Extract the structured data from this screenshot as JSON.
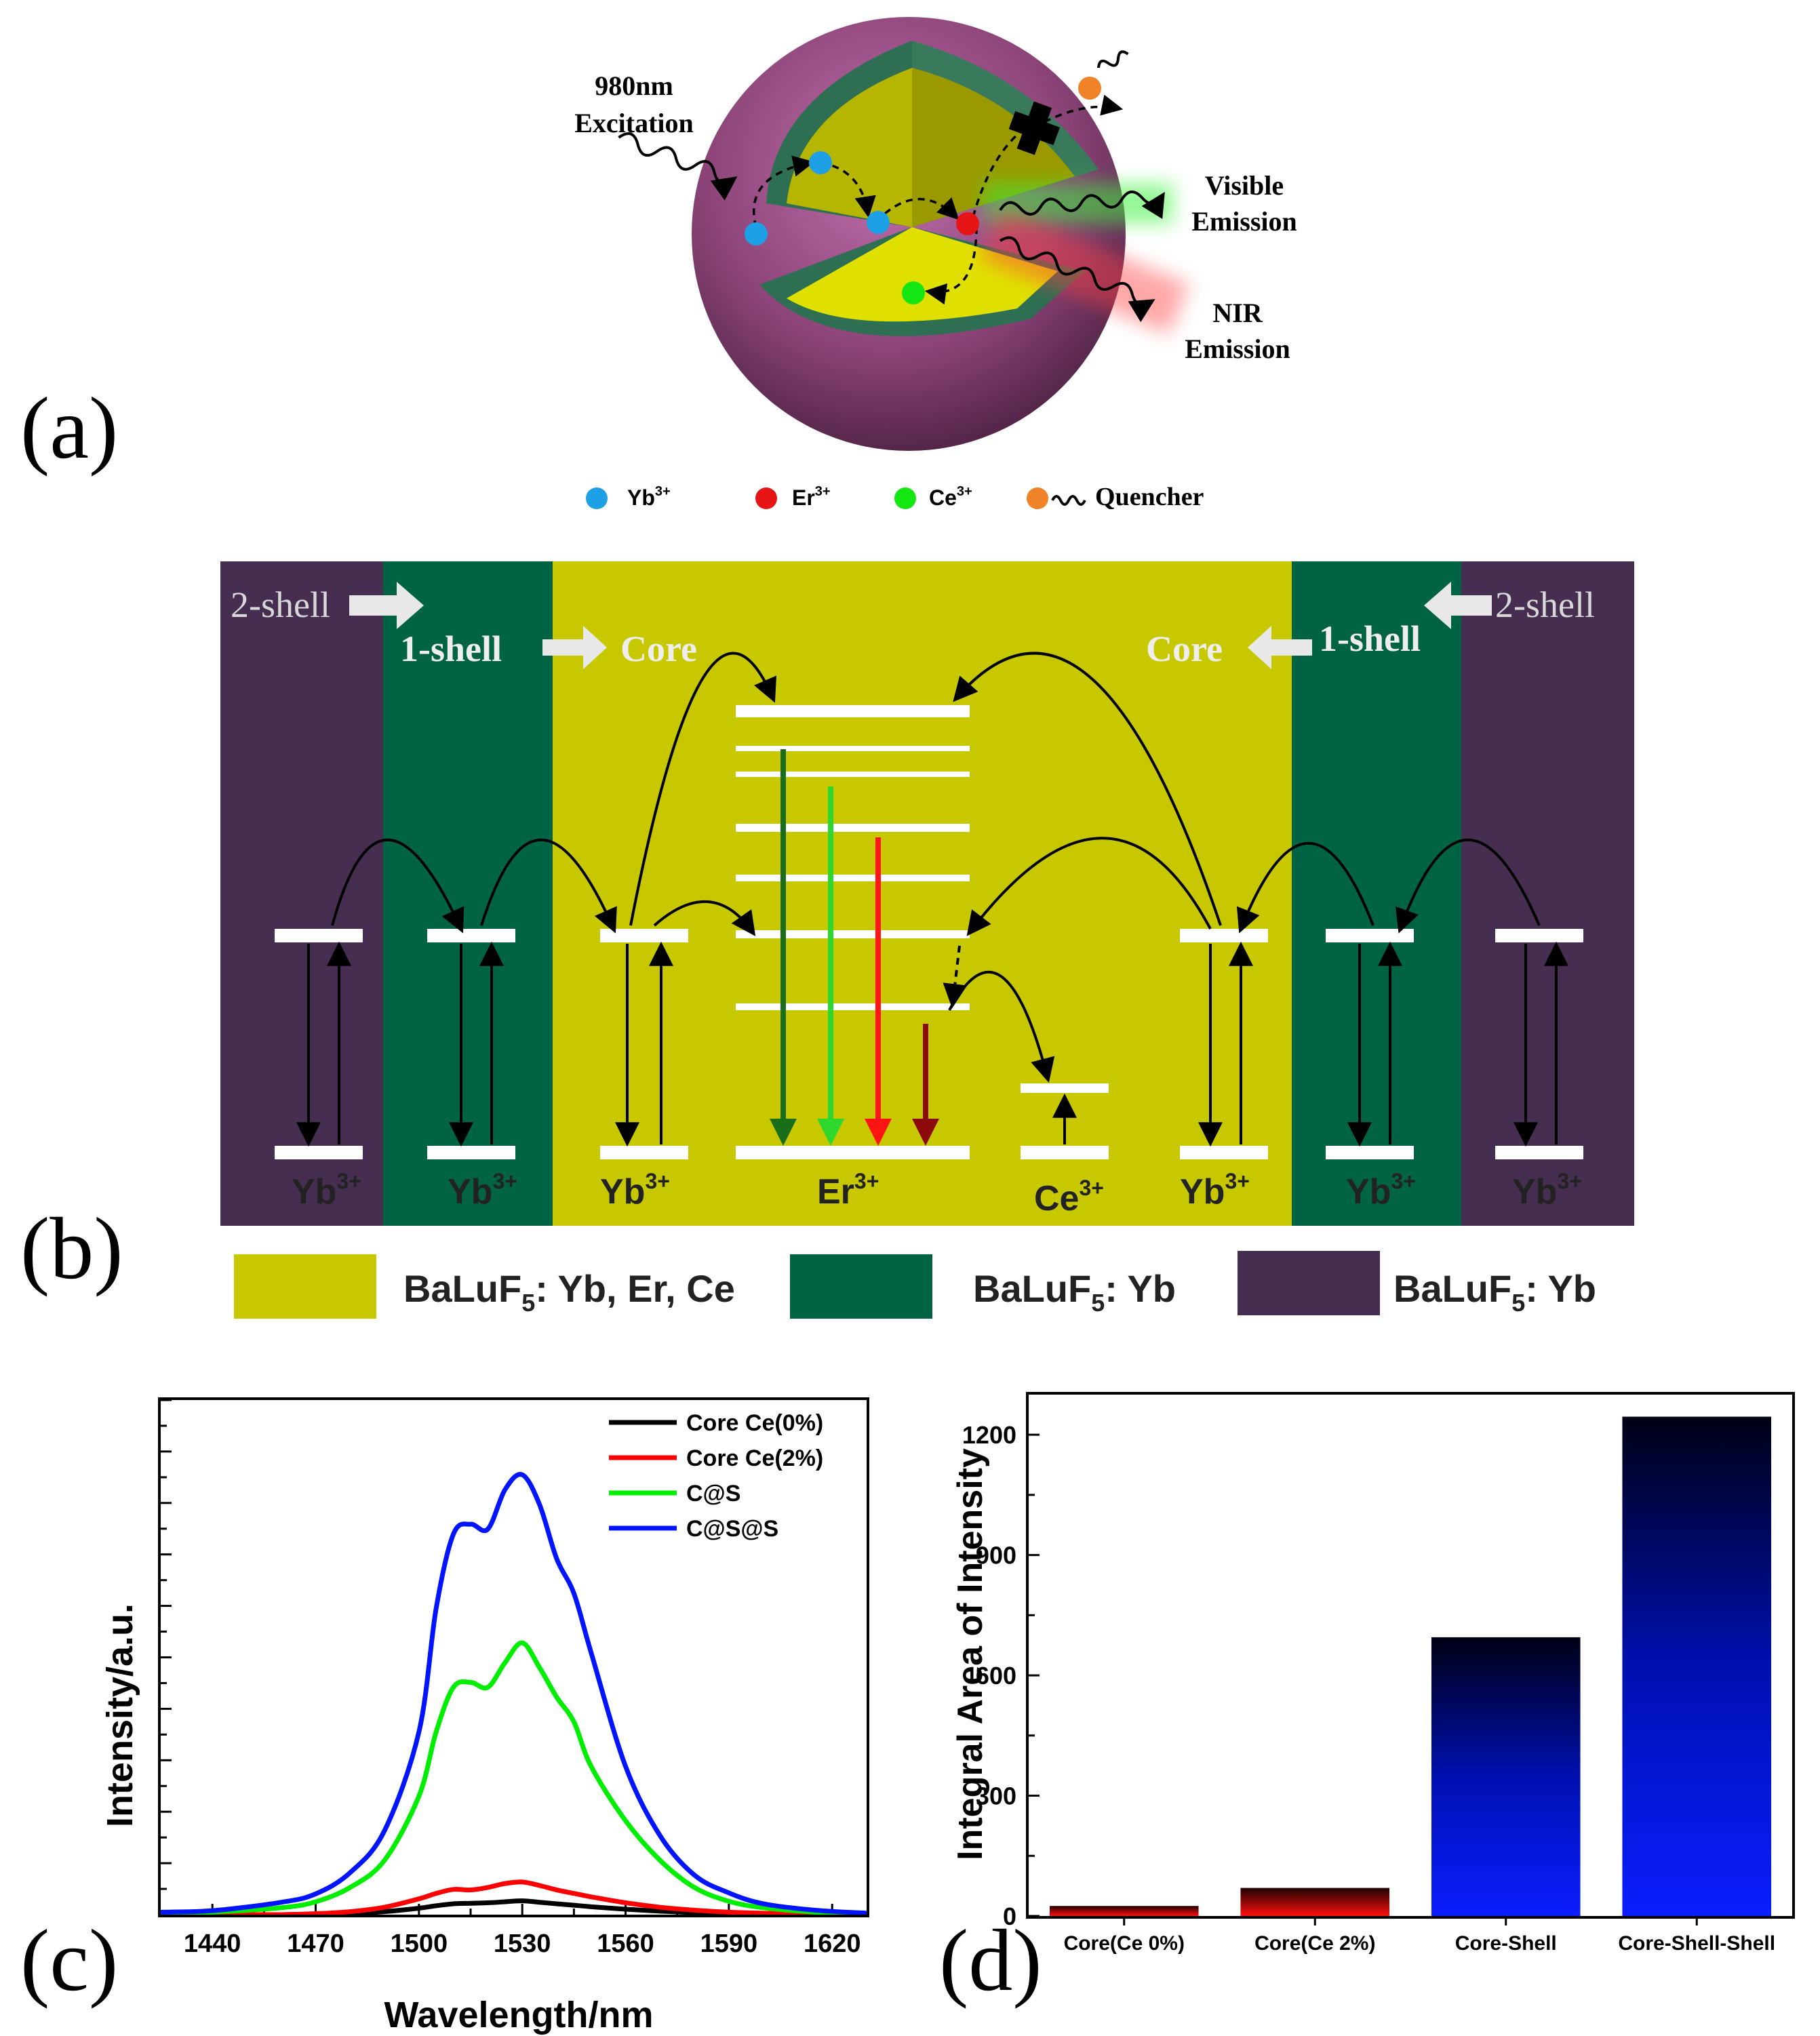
{
  "panels": {
    "a": "(a)",
    "b": "(b)",
    "c": "(c)",
    "d": "(d)"
  },
  "panel_a": {
    "excitation": [
      "980nm",
      "Excitation"
    ],
    "visible": [
      "Visible",
      "Emission"
    ],
    "nir": [
      "NIR",
      "Emission"
    ],
    "legend": {
      "yb": "Yb",
      "er": "Er",
      "ce": "Ce",
      "charge": "3+",
      "quencher": "Quencher"
    },
    "colors": {
      "shell_outer": "#a0508c",
      "shell_mid": "#2e6e52",
      "core": "#c8c800",
      "yb": "#1ea0e6",
      "er": "#e61414",
      "ce": "#14e614",
      "quencher": "#f08228"
    }
  },
  "panel_b": {
    "shell2_left": "2-shell",
    "shell1_left": "1-shell",
    "core_left": "Core",
    "core_right": "Core",
    "shell1_right": "1-shell",
    "shell2_right": "2-shell",
    "ion_labels": {
      "yb": "Yb",
      "er": "Er",
      "ce": "Ce",
      "charge": "3+"
    },
    "legend": {
      "core_formula": "BaLuF",
      "core_sub": "5",
      "core_dopants": ": Yb, Er, Ce",
      "shell1_formula": "BaLuF",
      "shell1_sub": "5",
      "shell1_dopants": ": Yb",
      "shell2_formula": "BaLuF",
      "shell2_sub": "5",
      "shell2_dopants": ": Yb"
    },
    "colors": {
      "core": "#c8c800",
      "shell1": "#006444",
      "shell2": "#452e4f"
    }
  },
  "panel_c": {
    "xlabel": "Wavelength/nm",
    "ylabel": "Intensity/a.u.",
    "xticks": [
      "1440",
      "1470",
      "1500",
      "1530",
      "1560",
      "1590",
      "1620"
    ]
  },
  "panel_d": {
    "ylabel": "Integral Area of Intensity",
    "yticks": [
      "0",
      "300",
      "600",
      "900",
      "1200"
    ]
  },
  "chart_data": [
    {
      "type": "line",
      "title": "",
      "xlabel": "Wavelength/nm",
      "ylabel": "Intensity/a.u.",
      "xlim": [
        1425,
        1630
      ],
      "ylim": [
        0,
        100
      ],
      "legend_position": "top-right",
      "x": [
        1425,
        1440,
        1460,
        1470,
        1480,
        1490,
        1500,
        1505,
        1510,
        1515,
        1520,
        1525,
        1530,
        1535,
        1540,
        1545,
        1550,
        1560,
        1570,
        1580,
        1590,
        1600,
        1615,
        1630
      ],
      "series": [
        {
          "name": "Core Ce(0%)",
          "color": "#000000",
          "values": [
            0,
            0,
            0,
            0.1,
            0.2,
            0.6,
            1.3,
            1.8,
            2.2,
            2.3,
            2.4,
            2.6,
            2.8,
            2.5,
            2.2,
            1.9,
            1.6,
            1.1,
            0.7,
            0.4,
            0.2,
            0.1,
            0,
            0
          ]
        },
        {
          "name": "Core Ce(2%)",
          "color": "#ff0000",
          "values": [
            0,
            0,
            0,
            0.2,
            0.6,
            1.5,
            3.2,
            4.3,
            5.1,
            5.0,
            5.5,
            6.3,
            6.6,
            5.9,
            5.0,
            4.3,
            3.6,
            2.4,
            1.5,
            0.9,
            0.5,
            0.3,
            0.1,
            0
          ]
        },
        {
          "name": "C@S",
          "color": "#00ee00",
          "values": [
            0.3,
            0.5,
            1.4,
            2.6,
            5.5,
            11,
            24,
            37,
            46,
            47,
            46,
            51,
            55,
            50,
            44,
            39,
            30,
            19,
            11,
            5.5,
            2.7,
            1.4,
            0.5,
            0.2
          ]
        },
        {
          "name": "C@S@S",
          "color": "#0014ff",
          "values": [
            0.5,
            0.8,
            2.5,
            4.2,
            8.5,
            17,
            37,
            62,
            77,
            79,
            78,
            86,
            89,
            83,
            72,
            65,
            53,
            30,
            16,
            8,
            4.4,
            2.2,
            0.9,
            0.3
          ]
        }
      ]
    },
    {
      "type": "bar",
      "title": "",
      "xlabel": "",
      "ylabel": "Integral Area of Intensity",
      "ylim": [
        0,
        1300
      ],
      "categories": [
        "Core(Ce 0%)",
        "Core(Ce 2%)",
        "Core-Shell",
        "Core-Shell-Shell"
      ],
      "values": [
        25,
        70,
        695,
        1245
      ],
      "colors": [
        "#ff0000",
        "#ff0000",
        "#0000ff",
        "#0000ff"
      ]
    }
  ]
}
